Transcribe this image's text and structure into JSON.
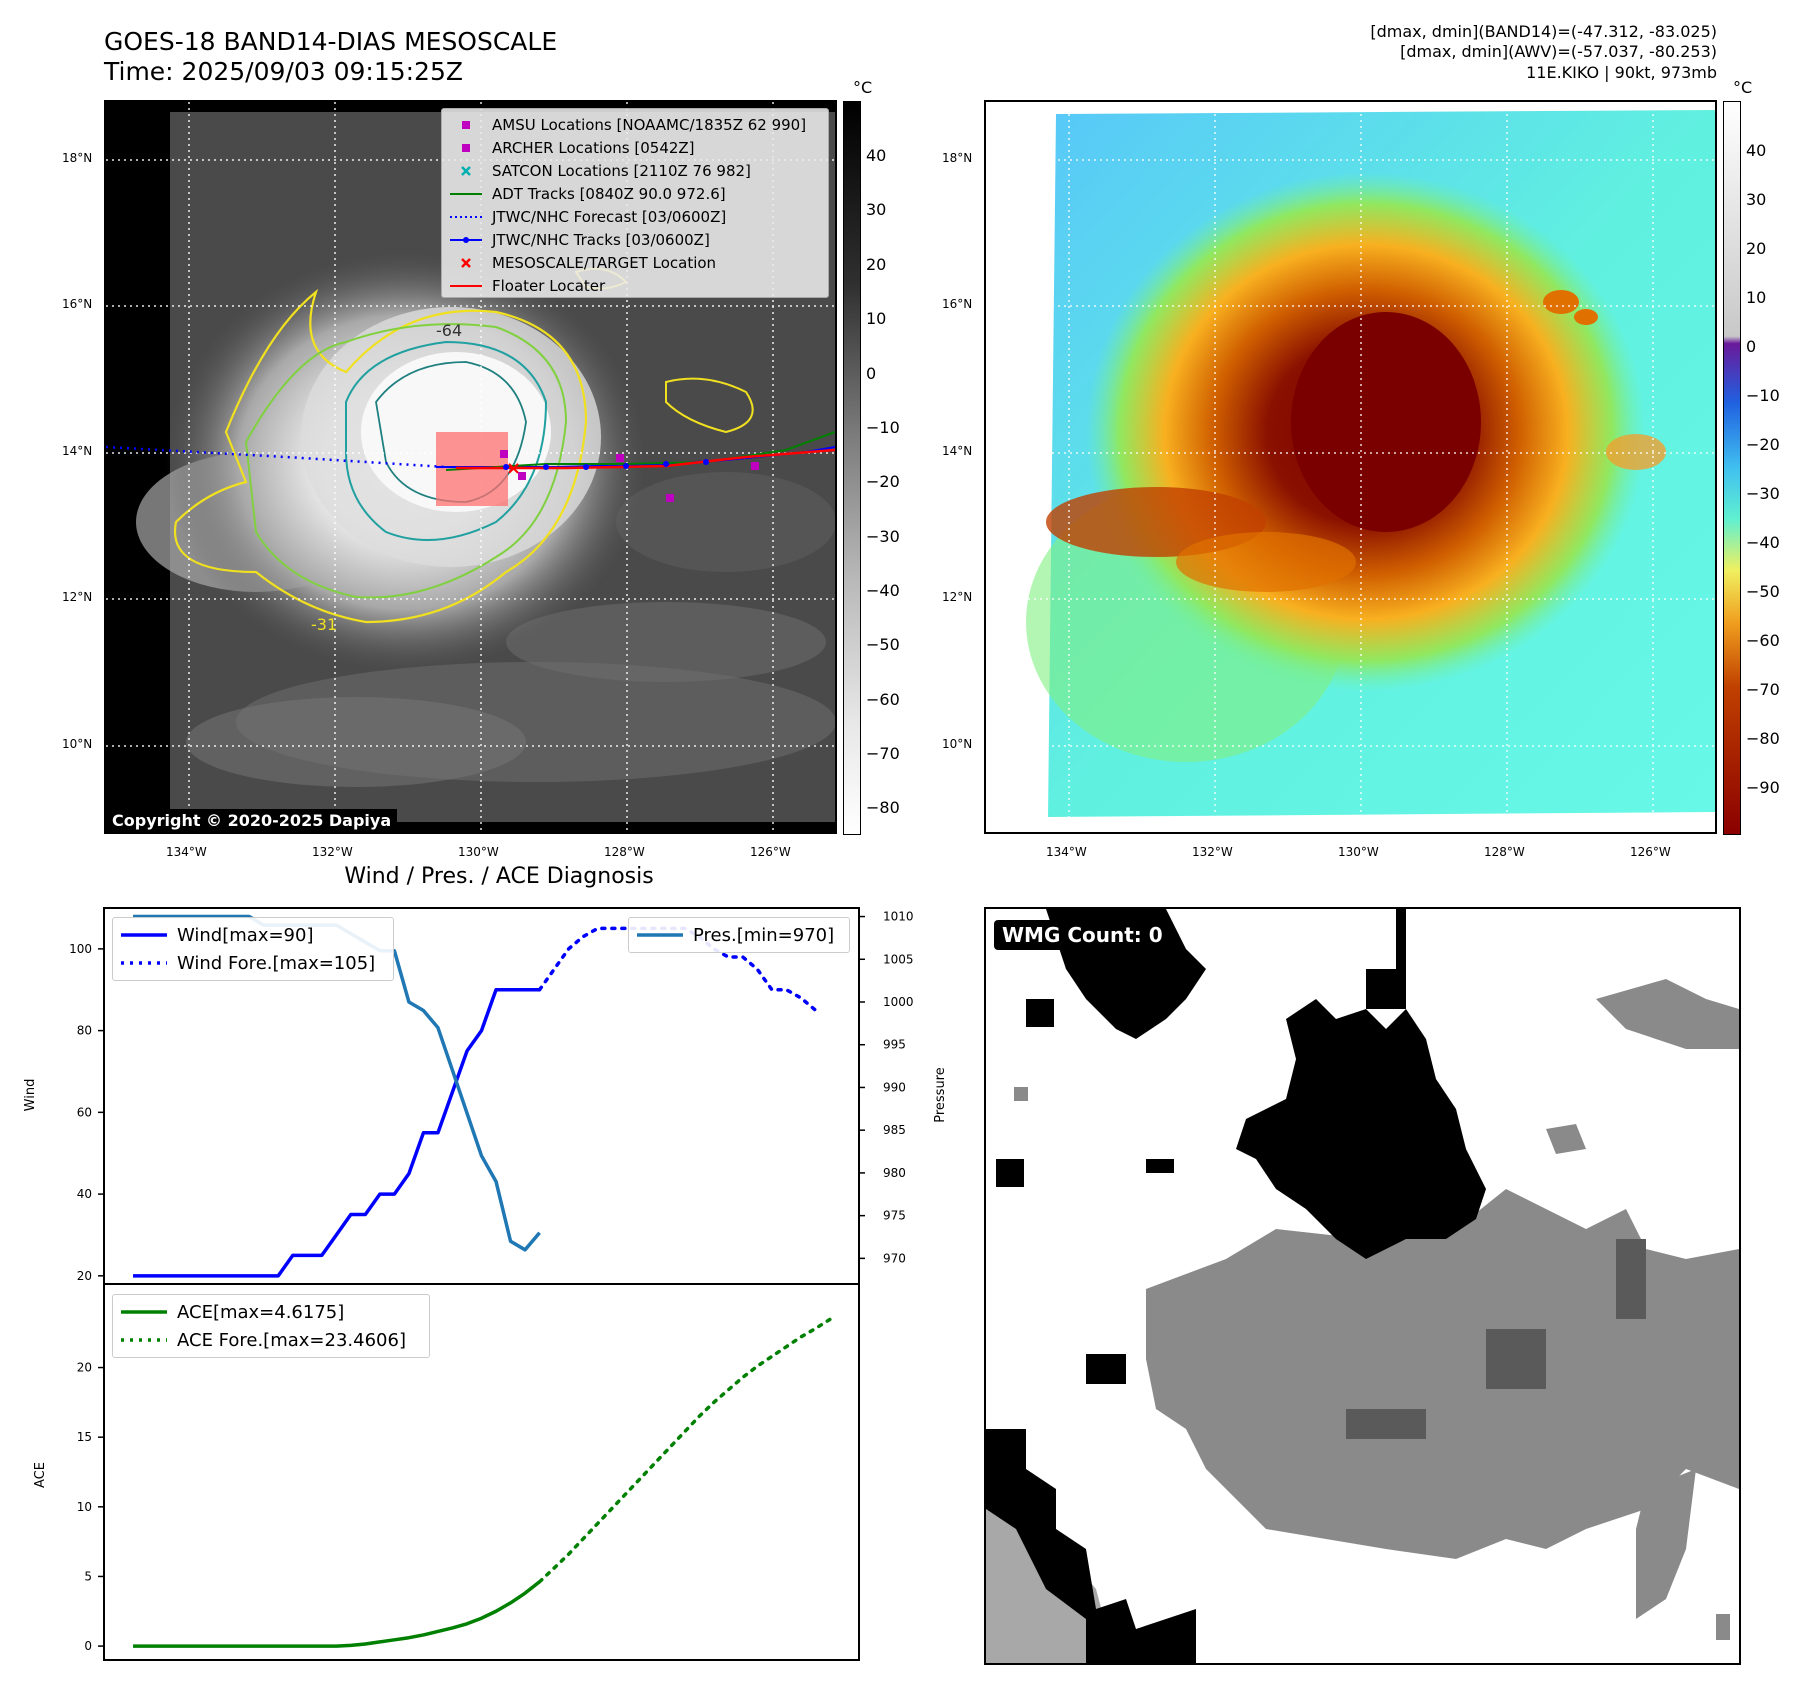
{
  "header": {
    "title_line1": "GOES-18 BAND14-DIAS MESOSCALE",
    "title_line2": "Time: 2025/09/03 09:15:25Z",
    "range_band14": "[dmax, dmin](BAND14)=(-47.312, -83.025)",
    "range_awv": "[dmax, dmin](AWV)=(-57.037, -80.253)",
    "storm_info": "11E.KIKO | 90kt, 973mb"
  },
  "map_left": {
    "lat_labels": [
      "18°N",
      "16°N",
      "14°N",
      "12°N",
      "10°N"
    ],
    "lon_labels": [
      "134°W",
      "132°W",
      "130°W",
      "128°W",
      "126°W"
    ],
    "contour_labels": [
      "-64",
      "-31"
    ],
    "copyright": "Copyright © 2020-2025 Dapiya",
    "legend": [
      {
        "label": "AMSU Locations [NOAAMC/1835Z 62 990]",
        "color": "#c000c0",
        "icon": "square-marker-icon"
      },
      {
        "label": "ARCHER Locations [0542Z]",
        "color": "#c000c0",
        "icon": "square-marker-icon"
      },
      {
        "label": "SATCON Locations [2110Z 76 982]",
        "color": "#00b0b0",
        "icon": "x-marker-icon"
      },
      {
        "label": "ADT Tracks [0840Z 90.0 972.6]",
        "color": "#008000",
        "icon": "line-icon"
      },
      {
        "label": "JTWC/NHC Forecast [03/0600Z]",
        "color": "#0000ff",
        "icon": "dotted-line-icon"
      },
      {
        "label": "JTWC/NHC Tracks [03/0600Z]",
        "color": "#0000ff",
        "icon": "line-dot-icon"
      },
      {
        "label": "MESOSCALE/TARGET Location",
        "color": "#ff0000",
        "icon": "x-marker-icon"
      },
      {
        "label": "Floater Locater",
        "color": "#ff0000",
        "icon": "line-icon"
      }
    ],
    "colorbar_unit": "°C",
    "colorbar_ticks": [
      "40",
      "30",
      "20",
      "10",
      "0",
      "−10",
      "−20",
      "−30",
      "−40",
      "−50",
      "−60",
      "−70",
      "−80"
    ]
  },
  "map_right": {
    "lat_labels": [
      "18°N",
      "16°N",
      "14°N",
      "12°N",
      "10°N"
    ],
    "lon_labels": [
      "134°W",
      "132°W",
      "130°W",
      "128°W",
      "126°W"
    ],
    "colorbar_unit": "°C",
    "colorbar_ticks": [
      "40",
      "30",
      "20",
      "10",
      "0",
      "−10",
      "−20",
      "−30",
      "−40",
      "−50",
      "−60",
      "−70",
      "−80",
      "−90"
    ]
  },
  "wmg": {
    "label": "WMG Count: 0"
  },
  "chart_data": [
    {
      "type": "line",
      "title": "Wind / Pres. / ACE Diagnosis",
      "ylabel": "Wind",
      "ylabel_right": "Pressure",
      "ylim": [
        18,
        110
      ],
      "ylim_right": [
        967,
        1011
      ],
      "yticks": [
        20,
        40,
        60,
        80,
        100
      ],
      "yticks_right": [
        970,
        975,
        980,
        985,
        990,
        995,
        1000,
        1005,
        1010
      ],
      "x": [
        0,
        1,
        2,
        3,
        4,
        5,
        6,
        7,
        8,
        9,
        10,
        11,
        12,
        13,
        14,
        15,
        16,
        17,
        18,
        19,
        20,
        21,
        22,
        23,
        24,
        25,
        26,
        27,
        28,
        29,
        30,
        31,
        32,
        33,
        34,
        35,
        36,
        37,
        38,
        39,
        40,
        41,
        42,
        43,
        44,
        45,
        46,
        47,
        48
      ],
      "series": [
        {
          "name": "Wind[max=90]",
          "legend": "Wind[max=90]",
          "style": "solid",
          "color": "#0000ff",
          "axis": "left",
          "x": [
            0,
            1,
            2,
            3,
            4,
            5,
            6,
            7,
            8,
            9,
            10,
            11,
            12,
            13,
            14,
            15,
            16,
            17,
            18,
            19,
            20,
            21,
            22,
            23,
            24,
            25,
            26,
            27,
            28
          ],
          "values": [
            20,
            20,
            20,
            20,
            20,
            20,
            20,
            20,
            20,
            20,
            20,
            25,
            25,
            25,
            30,
            35,
            35,
            40,
            40,
            45,
            55,
            55,
            65,
            75,
            80,
            90,
            90,
            90,
            90
          ]
        },
        {
          "name": "Wind Fore.[max=105]",
          "legend": "Wind Fore.[max=105]",
          "style": "dotted",
          "color": "#0000ff",
          "axis": "left",
          "x": [
            28,
            29,
            30,
            31,
            32,
            33,
            34,
            35,
            36,
            37,
            38,
            39,
            40,
            41,
            42,
            43,
            44,
            45,
            46,
            47
          ],
          "values": [
            90,
            95,
            100,
            103,
            105,
            105,
            105,
            105,
            105,
            105,
            105,
            103,
            100,
            98,
            98,
            95,
            90,
            90,
            88,
            85
          ]
        },
        {
          "name": "Pres.[min=970]",
          "legend": "Pres.[min=970]",
          "style": "solid",
          "color": "#1f77b4",
          "axis": "right",
          "x": [
            0,
            1,
            2,
            3,
            4,
            5,
            6,
            7,
            8,
            9,
            10,
            11,
            12,
            13,
            14,
            15,
            16,
            17,
            18,
            19,
            20,
            21,
            22,
            23,
            24,
            25,
            26,
            27,
            28
          ],
          "values": [
            1010,
            1010,
            1010,
            1010,
            1010,
            1010,
            1010,
            1010,
            1010,
            1009,
            1009,
            1009,
            1009,
            1009,
            1009,
            1008,
            1007,
            1006,
            1006,
            1000,
            999,
            997,
            992,
            987,
            982,
            979,
            972,
            971,
            973
          ]
        }
      ]
    },
    {
      "type": "line",
      "ylabel": "ACE",
      "ylim": [
        -1,
        26
      ],
      "yticks": [
        0,
        5,
        10,
        15,
        20
      ],
      "series": [
        {
          "name": "ACE[max=4.6175]",
          "legend": "ACE[max=4.6175]",
          "style": "solid",
          "color": "#008000",
          "x": [
            0,
            1,
            2,
            3,
            4,
            5,
            6,
            7,
            8,
            9,
            10,
            11,
            12,
            13,
            14,
            15,
            16,
            17,
            18,
            19,
            20,
            21,
            22,
            23,
            24,
            25,
            26,
            27,
            28
          ],
          "values": [
            0,
            0,
            0,
            0,
            0,
            0,
            0,
            0,
            0,
            0,
            0,
            0,
            0,
            0,
            0,
            0.05,
            0.15,
            0.3,
            0.45,
            0.6,
            0.8,
            1.05,
            1.3,
            1.6,
            2.0,
            2.5,
            3.1,
            3.8,
            4.6175
          ]
        },
        {
          "name": "ACE Fore.[max=23.4606]",
          "legend": "ACE Fore.[max=23.4606]",
          "style": "dotted",
          "color": "#008000",
          "x": [
            28,
            29,
            30,
            31,
            32,
            33,
            34,
            35,
            36,
            37,
            38,
            39,
            40,
            41,
            42,
            43,
            44,
            45,
            46,
            47,
            48
          ],
          "values": [
            4.6175,
            5.6,
            6.6,
            7.7,
            8.8,
            9.9,
            11.0,
            12.1,
            13.2,
            14.3,
            15.4,
            16.5,
            17.5,
            18.4,
            19.3,
            20.1,
            20.8,
            21.5,
            22.2,
            22.8,
            23.4606
          ]
        }
      ]
    }
  ]
}
